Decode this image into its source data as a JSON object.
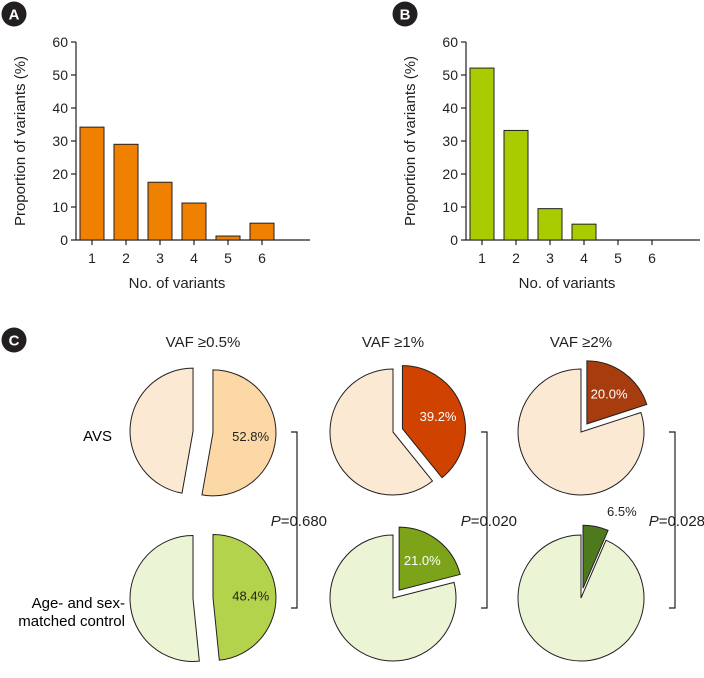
{
  "panels": {
    "a": {
      "label": "A"
    },
    "b": {
      "label": "B"
    },
    "c": {
      "label": "C"
    }
  },
  "row_labels": {
    "avs": "AVS",
    "control_line1": "Age- and sex-",
    "control_line2": "matched control"
  },
  "colors": {
    "orange_bar": "#F08000",
    "green_bar": "#A8CC00",
    "avs_light": "#FCE9D4",
    "control_light": "#EBF4D4",
    "avs_slice": [
      "#FCD8A6",
      "#CF4200",
      "#A73C0E"
    ],
    "control_slice": [
      "#B4D34C",
      "#7DA418",
      "#4E7A1E"
    ]
  },
  "chart_data": [
    {
      "id": "panel-a",
      "type": "bar",
      "categories": [
        "1",
        "2",
        "3",
        "4",
        "5",
        "6"
      ],
      "values": [
        34.2,
        29.0,
        17.5,
        11.2,
        1.2,
        5.1
      ],
      "xlabel": "No. of variants",
      "ylabel": "Proportion of variants (%)",
      "ylim": [
        0,
        60
      ],
      "yticks": [
        0,
        10,
        20,
        30,
        40,
        50,
        60
      ],
      "grid": false
    },
    {
      "id": "panel-b",
      "type": "bar",
      "categories": [
        "1",
        "2",
        "3",
        "4",
        "5",
        "6"
      ],
      "values": [
        52.1,
        33.2,
        9.5,
        4.8,
        0,
        0
      ],
      "xlabel": "No. of variants",
      "ylabel": "Proportion of variants (%)",
      "ylim": [
        0,
        60
      ],
      "yticks": [
        0,
        10,
        20,
        30,
        40,
        50,
        60
      ],
      "grid": false
    },
    {
      "id": "panel-c",
      "type": "pie",
      "columns": [
        "VAF ≥0.5%",
        "VAF ≥1%",
        "VAF ≥2%"
      ],
      "groups": [
        "AVS",
        "Age- and sex-matched control"
      ],
      "series": [
        {
          "name": "AVS",
          "highlighted_percent": [
            52.8,
            39.2,
            20.0
          ],
          "labels": [
            "52.8%",
            "39.2%",
            "20.0%"
          ]
        },
        {
          "name": "Age- and sex-matched control",
          "highlighted_percent": [
            48.4,
            21.0,
            6.5
          ],
          "labels": [
            "48.4%",
            "21.0%",
            "6.5%"
          ]
        }
      ],
      "p_values": [
        {
          "prefix": "P",
          "value": "=0.680"
        },
        {
          "prefix": "P",
          "value": "=0.020"
        },
        {
          "prefix": "P",
          "value": "=0.028"
        }
      ]
    }
  ]
}
